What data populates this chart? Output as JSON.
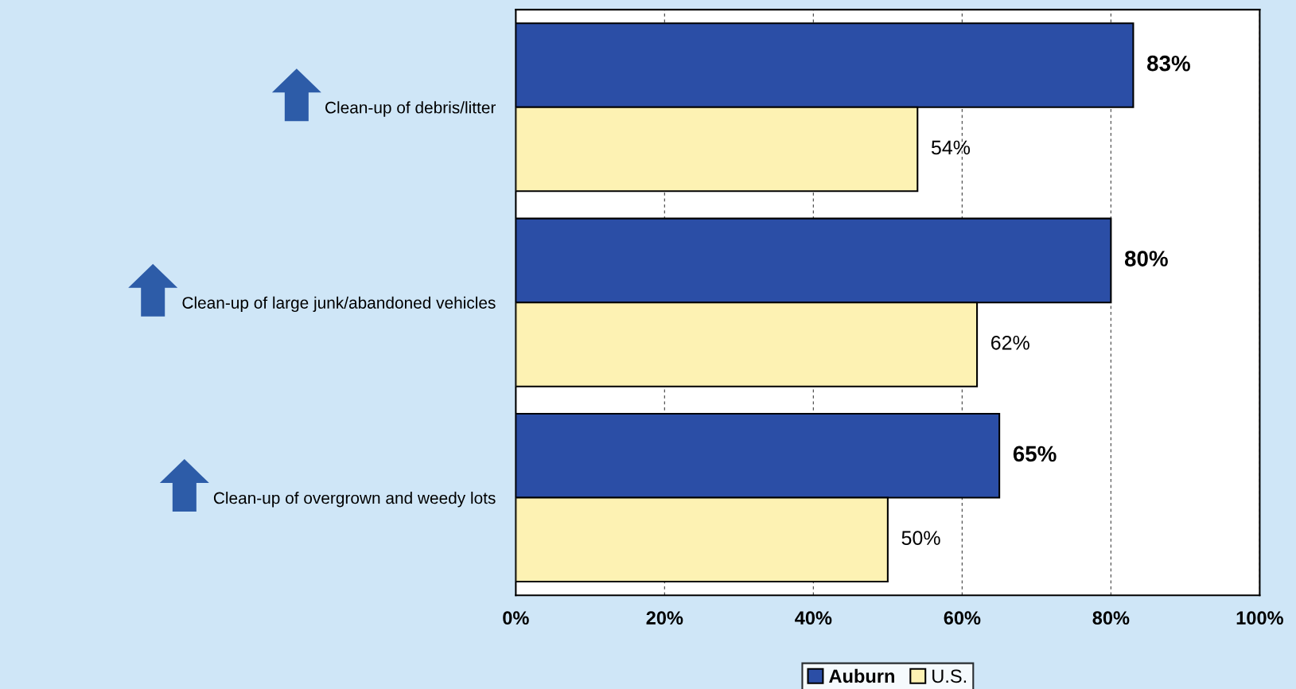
{
  "chart_data": {
    "type": "bar",
    "orientation": "horizontal",
    "categories": [
      "Clean-up of debris/litter",
      "Clean-up of large junk/abandoned vehicles",
      "Clean-up of overgrown and weedy lots"
    ],
    "series": [
      {
        "name": "Auburn",
        "color": "#2b4ea6",
        "values": [
          83,
          80,
          65
        ]
      },
      {
        "name": "U.S.",
        "color": "#fdf2b3",
        "values": [
          54,
          62,
          50
        ]
      }
    ],
    "xlim": [
      0,
      100
    ],
    "xticks": [
      {
        "value": 0,
        "label": "0%"
      },
      {
        "value": 20,
        "label": "20%"
      },
      {
        "value": 40,
        "label": "40%"
      },
      {
        "value": 60,
        "label": "60%"
      },
      {
        "value": 80,
        "label": "80%"
      },
      {
        "value": 100,
        "label": "100%"
      }
    ],
    "value_labels": [
      [
        "83%",
        "80%",
        "65%"
      ],
      [
        "54%",
        "62%",
        "50%"
      ]
    ],
    "grid": "x",
    "legend": "bottom"
  }
}
